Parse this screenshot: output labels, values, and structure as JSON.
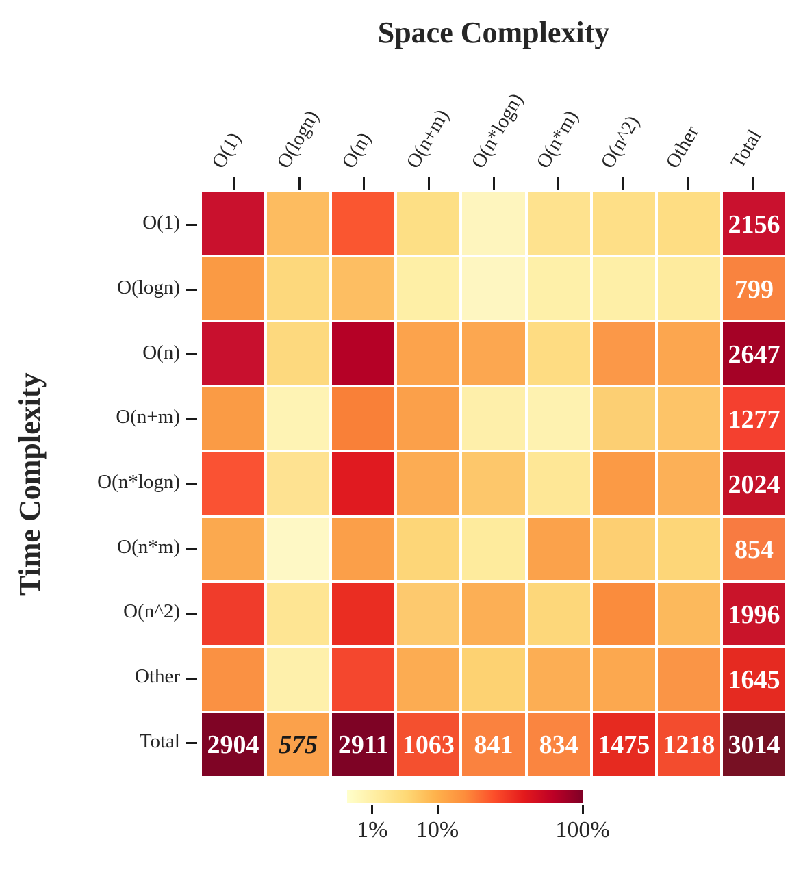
{
  "title": "Space Complexity",
  "ylabel": "Time Complexity",
  "chart_data": {
    "type": "heatmap",
    "title": "Space Complexity",
    "xlabel": "Space Complexity",
    "ylabel": "Time Complexity",
    "x_categories": [
      "O(1)",
      "O(logn)",
      "O(n)",
      "O(n+m)",
      "O(n*logn)",
      "O(n*m)",
      "O(n^2)",
      "Other",
      "Total"
    ],
    "y_categories": [
      "O(1)",
      "O(logn)",
      "O(n)",
      "O(n+m)",
      "O(n*logn)",
      "O(n*m)",
      "O(n^2)",
      "Other",
      "Total"
    ],
    "row_totals": [
      2156,
      799,
      2647,
      1277,
      2024,
      854,
      1996,
      1645
    ],
    "col_totals": [
      2904,
      575,
      2911,
      1063,
      841,
      834,
      1475,
      1218
    ],
    "grand_total": 3014,
    "cell_colors": [
      [
        "#c9112d",
        "#fdbc60",
        "#fa5630",
        "#fddf85",
        "#fef5be",
        "#fee28e",
        "#fedf87",
        "#fedd83",
        "#c9112e"
      ],
      [
        "#fa9a44",
        "#fdd87c",
        "#fdbe62",
        "#feefa6",
        "#fef6c1",
        "#fef0a9",
        "#feefa7",
        "#feeb9e",
        "#f9833f"
      ],
      [
        "#c8102e",
        "#fdd97e",
        "#b50126",
        "#fca34c",
        "#fca750",
        "#fedc82",
        "#fb9848",
        "#fca64f",
        "#a50226"
      ],
      [
        "#fa9b45",
        "#fef3b4",
        "#f98038",
        "#fba04a",
        "#feefaa",
        "#fef2b0",
        "#fccf73",
        "#fdc468",
        "#f4402f"
      ],
      [
        "#fa5233",
        "#fee291",
        "#e01a20",
        "#fcac53",
        "#fdc76b",
        "#fee796",
        "#fb9a45",
        "#fcb057",
        "#c41229"
      ],
      [
        "#fba94f",
        "#fef8c5",
        "#fb9f49",
        "#fdd678",
        "#feeb9d",
        "#fba24b",
        "#fdcf72",
        "#fdd678",
        "#f87b41"
      ],
      [
        "#f03c2b",
        "#fee593",
        "#ea2d22",
        "#fdc96e",
        "#fcaf55",
        "#fdd77a",
        "#fa8c3d",
        "#fcb95c",
        "#c9142a"
      ],
      [
        "#fa9143",
        "#fef0ab",
        "#f4472e",
        "#fcac52",
        "#fdd272",
        "#fcae54",
        "#fca84f",
        "#fa9546",
        "#e52a21"
      ],
      [
        "#7f0425",
        "#fba14b",
        "#7e0325",
        "#f4502f",
        "#fa823f",
        "#fa8540",
        "#e62a20",
        "#f34c2e",
        "#771023"
      ]
    ],
    "labels": [
      {
        "row": 0,
        "col": 8,
        "text": "2156",
        "color": "#ffffff"
      },
      {
        "row": 1,
        "col": 8,
        "text": "799",
        "color": "#ffffff"
      },
      {
        "row": 2,
        "col": 8,
        "text": "2647",
        "color": "#ffffff"
      },
      {
        "row": 3,
        "col": 8,
        "text": "1277",
        "color": "#ffffff"
      },
      {
        "row": 4,
        "col": 8,
        "text": "2024",
        "color": "#ffffff"
      },
      {
        "row": 5,
        "col": 8,
        "text": "854",
        "color": "#ffffff"
      },
      {
        "row": 6,
        "col": 8,
        "text": "1996",
        "color": "#ffffff"
      },
      {
        "row": 7,
        "col": 8,
        "text": "1645",
        "color": "#ffffff"
      },
      {
        "row": 8,
        "col": 0,
        "text": "2904",
        "color": "#ffffff"
      },
      {
        "row": 8,
        "col": 1,
        "text": "575",
        "color": "#1a1a1a",
        "italic": true
      },
      {
        "row": 8,
        "col": 2,
        "text": "2911",
        "color": "#ffffff"
      },
      {
        "row": 8,
        "col": 3,
        "text": "1063",
        "color": "#ffffff"
      },
      {
        "row": 8,
        "col": 4,
        "text": "841",
        "color": "#ffffff"
      },
      {
        "row": 8,
        "col": 5,
        "text": "834",
        "color": "#ffffff"
      },
      {
        "row": 8,
        "col": 6,
        "text": "1475",
        "color": "#ffffff"
      },
      {
        "row": 8,
        "col": 7,
        "text": "1218",
        "color": "#ffffff"
      },
      {
        "row": 8,
        "col": 8,
        "text": "3014",
        "color": "#ffffff"
      }
    ],
    "colorbar": {
      "scale": "percent",
      "tick_labels": [
        "1%",
        "10%",
        "100%"
      ],
      "tick_positions": [
        0.107,
        0.384,
        1.0
      ],
      "gradient": [
        "#ffffcc",
        "#ffeda0",
        "#fed976",
        "#feb24c",
        "#fd8d3c",
        "#fc4e2a",
        "#e31a1c",
        "#bd0026",
        "#800026"
      ]
    }
  }
}
